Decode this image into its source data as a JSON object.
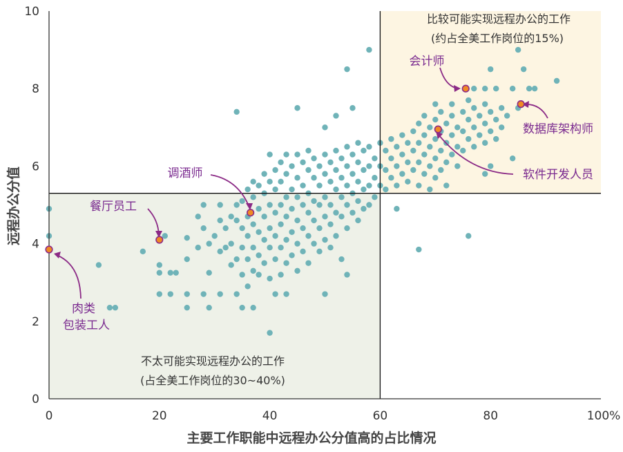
{
  "chart_data": {
    "type": "scatter",
    "xlabel": "主要工作职能中远程办公分值高的占比情况",
    "ylabel": "远程办公分值",
    "xlim": [
      0,
      100
    ],
    "ylim": [
      0,
      10
    ],
    "x_ticks": [
      "0",
      "20",
      "40",
      "60",
      "80",
      "100%"
    ],
    "y_ticks": [
      "0",
      "2",
      "4",
      "6",
      "8",
      "10"
    ],
    "threshold_lines": {
      "x": 60,
      "y": 5.3
    },
    "grid": false,
    "colors": {
      "points": "#6fb3b8",
      "highlight_fill": "#f08a24",
      "highlight_stroke": "#8b2a86",
      "label": "#7a2a8f",
      "bottom_left_region": "#eef1e8",
      "top_right_region": "#fdf5e2"
    },
    "regions": [
      {
        "name": "top-right",
        "line1": "比较可能实现远程办公的工作",
        "line2": "(约占全美工作岗位的15%)"
      },
      {
        "name": "bottom-left",
        "line1": "不太可能实现远程办公的工作",
        "line2": "(占全美工作岗位的30~40%)"
      }
    ],
    "highlights": [
      {
        "label": "会计师",
        "x": 75.5,
        "y": 8.0
      },
      {
        "label": "数据库架构师",
        "x": 85.5,
        "y": 7.6
      },
      {
        "label": "软件开发人员",
        "x": 70.5,
        "y": 6.95
      },
      {
        "label": "调酒师",
        "x": 36.5,
        "y": 4.8
      },
      {
        "label": "餐厅员工",
        "x": 20.0,
        "y": 4.1
      },
      {
        "label": "肉类",
        "label2": "包装工人",
        "x": 0.0,
        "y": 3.85
      }
    ],
    "points": [
      [
        0,
        4.9
      ],
      [
        0,
        4.2
      ],
      [
        9,
        3.45
      ],
      [
        11,
        2.35
      ],
      [
        12,
        2.35
      ],
      [
        17,
        3.8
      ],
      [
        20,
        3.45
      ],
      [
        20,
        3.25
      ],
      [
        20,
        2.7
      ],
      [
        21,
        4.2
      ],
      [
        22,
        3.25
      ],
      [
        22,
        2.7
      ],
      [
        23,
        3.25
      ],
      [
        25,
        4.15
      ],
      [
        25,
        2.7
      ],
      [
        25,
        2.35
      ],
      [
        25,
        3.6
      ],
      [
        27,
        4.7
      ],
      [
        27,
        3.9
      ],
      [
        28,
        5.0
      ],
      [
        28,
        4.4
      ],
      [
        28,
        2.7
      ],
      [
        29,
        4.0
      ],
      [
        29,
        3.25
      ],
      [
        29,
        2.35
      ],
      [
        30,
        4.2
      ],
      [
        31,
        5.0
      ],
      [
        31,
        4.6
      ],
      [
        31,
        3.8
      ],
      [
        31,
        2.7
      ],
      [
        32,
        4.4
      ],
      [
        32,
        3.9
      ],
      [
        33,
        4.7
      ],
      [
        33,
        4.0
      ],
      [
        33,
        3.45
      ],
      [
        34,
        7.4
      ],
      [
        34,
        5.0
      ],
      [
        34,
        4.6
      ],
      [
        34,
        3.6
      ],
      [
        34,
        2.7
      ],
      [
        35,
        5.1
      ],
      [
        35,
        4.4
      ],
      [
        35,
        3.9
      ],
      [
        35,
        3.2
      ],
      [
        35,
        2.35
      ],
      [
        36,
        5.4
      ],
      [
        36,
        4.7
      ],
      [
        36,
        4.2
      ],
      [
        36,
        3.6
      ],
      [
        36,
        2.9
      ],
      [
        37,
        5.6
      ],
      [
        37,
        5.2
      ],
      [
        37,
        4.5
      ],
      [
        37,
        3.9
      ],
      [
        37,
        3.3
      ],
      [
        37,
        2.35
      ],
      [
        38,
        5.5
      ],
      [
        38,
        4.9
      ],
      [
        38,
        4.3
      ],
      [
        38,
        3.7
      ],
      [
        38,
        3.2
      ],
      [
        39,
        5.8
      ],
      [
        39,
        5.3
      ],
      [
        39,
        4.7
      ],
      [
        39,
        4.1
      ],
      [
        39,
        3.5
      ],
      [
        40,
        6.3
      ],
      [
        40,
        5.6
      ],
      [
        40,
        5.0
      ],
      [
        40,
        4.4
      ],
      [
        40,
        3.9
      ],
      [
        40,
        3.1
      ],
      [
        40,
        1.7
      ],
      [
        41,
        5.9
      ],
      [
        41,
        5.4
      ],
      [
        41,
        4.8
      ],
      [
        41,
        4.2
      ],
      [
        41,
        3.6
      ],
      [
        41,
        2.7
      ],
      [
        42,
        6.1
      ],
      [
        42,
        5.6
      ],
      [
        42,
        5.0
      ],
      [
        42,
        4.5
      ],
      [
        42,
        3.9
      ],
      [
        42,
        3.2
      ],
      [
        43,
        6.3
      ],
      [
        43,
        5.8
      ],
      [
        43,
        5.2
      ],
      [
        43,
        4.7
      ],
      [
        43,
        4.1
      ],
      [
        43,
        3.5
      ],
      [
        43,
        2.7
      ],
      [
        44,
        6.0
      ],
      [
        44,
        5.4
      ],
      [
        44,
        4.9
      ],
      [
        44,
        4.3
      ],
      [
        44,
        3.7
      ],
      [
        45,
        7.5
      ],
      [
        45,
        6.3
      ],
      [
        45,
        5.7
      ],
      [
        45,
        5.2
      ],
      [
        45,
        4.6
      ],
      [
        45,
        4.0
      ],
      [
        45,
        3.3
      ],
      [
        46,
        6.1
      ],
      [
        46,
        5.5
      ],
      [
        46,
        5.0
      ],
      [
        46,
        4.4
      ],
      [
        46,
        3.8
      ],
      [
        47,
        6.4
      ],
      [
        47,
        5.9
      ],
      [
        47,
        5.3
      ],
      [
        47,
        4.8
      ],
      [
        47,
        4.2
      ],
      [
        47,
        3.5
      ],
      [
        48,
        6.2
      ],
      [
        48,
        5.7
      ],
      [
        48,
        5.1
      ],
      [
        48,
        4.6
      ],
      [
        48,
        4.0
      ],
      [
        49,
        6.0
      ],
      [
        49,
        5.5
      ],
      [
        49,
        5.0
      ],
      [
        49,
        4.4
      ],
      [
        49,
        3.8
      ],
      [
        50,
        7.0
      ],
      [
        50,
        6.3
      ],
      [
        50,
        5.8
      ],
      [
        50,
        5.2
      ],
      [
        50,
        4.7
      ],
      [
        50,
        4.1
      ],
      [
        50,
        2.7
      ],
      [
        51,
        6.1
      ],
      [
        51,
        5.6
      ],
      [
        51,
        5.0
      ],
      [
        51,
        4.5
      ],
      [
        51,
        3.9
      ],
      [
        52,
        7.3
      ],
      [
        52,
        6.4
      ],
      [
        52,
        5.9
      ],
      [
        52,
        5.4
      ],
      [
        52,
        4.8
      ],
      [
        52,
        4.2
      ],
      [
        53,
        6.2
      ],
      [
        53,
        5.7
      ],
      [
        53,
        5.2
      ],
      [
        53,
        4.7
      ],
      [
        53,
        3.6
      ],
      [
        54,
        8.5
      ],
      [
        54,
        6.5
      ],
      [
        54,
        6.0
      ],
      [
        54,
        5.5
      ],
      [
        54,
        5.0
      ],
      [
        54,
        4.4
      ],
      [
        54,
        3.2
      ],
      [
        55,
        7.5
      ],
      [
        55,
        6.3
      ],
      [
        55,
        5.8
      ],
      [
        55,
        5.3
      ],
      [
        55,
        4.8
      ],
      [
        56,
        6.6
      ],
      [
        56,
        6.1
      ],
      [
        56,
        5.6
      ],
      [
        56,
        5.1
      ],
      [
        56,
        4.6
      ],
      [
        57,
        6.4
      ],
      [
        57,
        5.9
      ],
      [
        57,
        5.4
      ],
      [
        57,
        4.9
      ],
      [
        58,
        9.0
      ],
      [
        58,
        6.5
      ],
      [
        58,
        6.0
      ],
      [
        58,
        5.5
      ],
      [
        58,
        5.0
      ],
      [
        59,
        6.2
      ],
      [
        59,
        5.7
      ],
      [
        59,
        5.2
      ],
      [
        60,
        6.6
      ],
      [
        60,
        6.0
      ],
      [
        60,
        5.5
      ],
      [
        61,
        6.4
      ],
      [
        61,
        5.9
      ],
      [
        61,
        5.4
      ],
      [
        62,
        6.7
      ],
      [
        62,
        6.2
      ],
      [
        62,
        5.7
      ],
      [
        63,
        6.5
      ],
      [
        63,
        6.0
      ],
      [
        63,
        5.5
      ],
      [
        63,
        4.9
      ],
      [
        64,
        6.8
      ],
      [
        64,
        6.3
      ],
      [
        64,
        5.8
      ],
      [
        65,
        6.6
      ],
      [
        65,
        6.1
      ],
      [
        65,
        5.6
      ],
      [
        66,
        6.9
      ],
      [
        66,
        6.4
      ],
      [
        66,
        5.9
      ],
      [
        67,
        7.1
      ],
      [
        67,
        6.6
      ],
      [
        67,
        6.1
      ],
      [
        67,
        5.5
      ],
      [
        68,
        7.3
      ],
      [
        68,
        6.8
      ],
      [
        68,
        6.3
      ],
      [
        68,
        5.8
      ],
      [
        69,
        7.0
      ],
      [
        69,
        6.5
      ],
      [
        69,
        6.0
      ],
      [
        69,
        5.4
      ],
      [
        70,
        7.6
      ],
      [
        70,
        7.2
      ],
      [
        70,
        6.7
      ],
      [
        70,
        6.2
      ],
      [
        70,
        5.7
      ],
      [
        71,
        7.4
      ],
      [
        71,
        6.9
      ],
      [
        71,
        6.4
      ],
      [
        71,
        5.9
      ],
      [
        72,
        7.1
      ],
      [
        72,
        6.6
      ],
      [
        72,
        6.1
      ],
      [
        72,
        5.5
      ],
      [
        73,
        7.6
      ],
      [
        73,
        7.3
      ],
      [
        73,
        6.8
      ],
      [
        73,
        6.3
      ],
      [
        74,
        7.0
      ],
      [
        74,
        6.5
      ],
      [
        74,
        6.0
      ],
      [
        75,
        7.4
      ],
      [
        75,
        6.9
      ],
      [
        75,
        6.4
      ],
      [
        76,
        4.2
      ],
      [
        76,
        7.7
      ],
      [
        76,
        7.2
      ],
      [
        76,
        6.7
      ],
      [
        77,
        8.0
      ],
      [
        77,
        7.5
      ],
      [
        77,
        7.0
      ],
      [
        77,
        6.5
      ],
      [
        78,
        7.3
      ],
      [
        78,
        6.8
      ],
      [
        79,
        8.0
      ],
      [
        79,
        7.6
      ],
      [
        79,
        7.1
      ],
      [
        79,
        6.6
      ],
      [
        79,
        5.8
      ],
      [
        80,
        8.5
      ],
      [
        80,
        7.4
      ],
      [
        80,
        6.9
      ],
      [
        80,
        6.0
      ],
      [
        81,
        8.0
      ],
      [
        81,
        7.2
      ],
      [
        81,
        6.7
      ],
      [
        82,
        7.5
      ],
      [
        82,
        7.0
      ],
      [
        83,
        7.3
      ],
      [
        84,
        8.0
      ],
      [
        84,
        6.2
      ],
      [
        85,
        7.5
      ],
      [
        85,
        9.0
      ],
      [
        86,
        8.5
      ],
      [
        87,
        8.0
      ],
      [
        88,
        8.0
      ],
      [
        92,
        8.2
      ],
      [
        67,
        3.85
      ]
    ]
  }
}
